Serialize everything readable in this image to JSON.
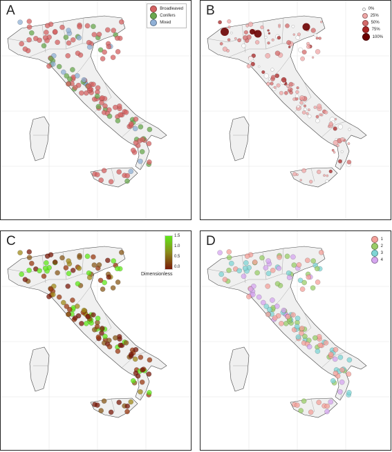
{
  "panels": [
    {
      "id": "A",
      "label": "A",
      "legend": [
        {
          "label": "Broadleaved",
          "color": "#d46262"
        },
        {
          "label": "Conifers",
          "color": "#6aa84f"
        },
        {
          "label": "Mixed",
          "color": "#8fb0d6"
        }
      ]
    },
    {
      "id": "B",
      "label": "B",
      "legend": [
        {
          "label": "0%",
          "color": "#ffffff"
        },
        {
          "label": "25%",
          "color": "#f0a7a7"
        },
        {
          "label": "50%",
          "color": "#d46a6a"
        },
        {
          "label": "75%",
          "color": "#a82424"
        },
        {
          "label": "100%",
          "color": "#6b0000"
        }
      ]
    },
    {
      "id": "C",
      "label": "C",
      "colorbar": {
        "ticks": [
          "1.5",
          "1.0",
          "0.5",
          "0.0"
        ],
        "title": "Dimensionless",
        "high_color": "#60e81a",
        "low_color": "#7a1a0a"
      }
    },
    {
      "id": "D",
      "label": "D",
      "legend": [
        {
          "label": "1",
          "color": "#f4a09a"
        },
        {
          "label": "2",
          "color": "#9acd68"
        },
        {
          "label": "3",
          "color": "#7fd6d6"
        },
        {
          "label": "4",
          "color": "#d6a6f0"
        }
      ]
    }
  ],
  "map_colors": {
    "land": "#f0f0f0",
    "border": "#444444",
    "grid": "#e4e4e4"
  }
}
